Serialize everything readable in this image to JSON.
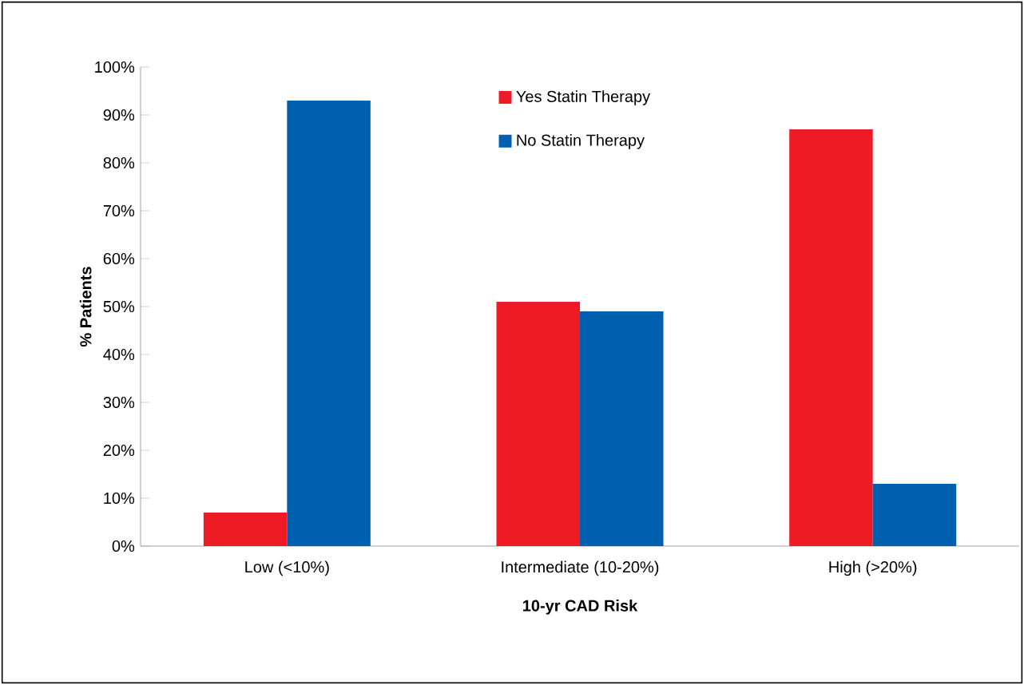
{
  "chart_data": {
    "type": "bar",
    "xlabel": "10-yr CAD Risk",
    "ylabel": "% Patients",
    "categories": [
      "Low (<10%)",
      "Intermediate (10-20%)",
      "High (>20%)"
    ],
    "series": [
      {
        "name": "Yes Statin Therapy",
        "color": "#ed1c24",
        "values": [
          7,
          51,
          87
        ]
      },
      {
        "name": "No Statin Therapy",
        "color": "#0060b0",
        "values": [
          93,
          49,
          13
        ]
      }
    ],
    "ylim": [
      0,
      100
    ],
    "yticks": [
      {
        "value": 0,
        "label": "0%"
      },
      {
        "value": 10,
        "label": "10%"
      },
      {
        "value": 20,
        "label": "20%"
      },
      {
        "value": 30,
        "label": "30%"
      },
      {
        "value": 40,
        "label": "40%"
      },
      {
        "value": 50,
        "label": "50%"
      },
      {
        "value": 60,
        "label": "60%"
      },
      {
        "value": 70,
        "label": "70%"
      },
      {
        "value": 80,
        "label": "80%"
      },
      {
        "value": 90,
        "label": "90%"
      },
      {
        "value": 100,
        "label": "100%"
      }
    ],
    "grid": false,
    "legend": "top"
  }
}
